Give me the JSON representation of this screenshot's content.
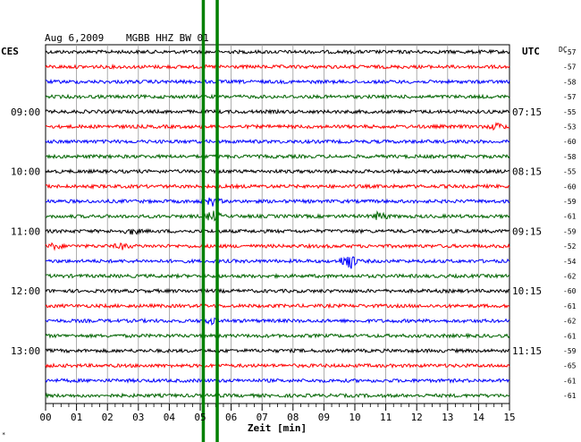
{
  "header": {
    "date": "Aug 6,2009",
    "station": "MGBB HHZ BW 01"
  },
  "left_corner_label": "CES",
  "right_corner_label": "UTC",
  "dc_header": "DC",
  "footer_mark": "*",
  "chart_data": {
    "type": "line",
    "title": "Aug 6,2009   MGBB HHZ BW 01",
    "xlabel": "Zeit [min]",
    "xlim": [
      0,
      15
    ],
    "x_ticks": [
      "00",
      "01",
      "02",
      "03",
      "04",
      "05",
      "06",
      "07",
      "08",
      "09",
      "10",
      "11",
      "12",
      "13",
      "14",
      "15"
    ],
    "grid": true,
    "left_time_labels": [
      {
        "trace": 4,
        "label": "09:00"
      },
      {
        "trace": 8,
        "label": "10:00"
      },
      {
        "trace": 12,
        "label": "11:00"
      },
      {
        "trace": 16,
        "label": "12:00"
      },
      {
        "trace": 20,
        "label": "13:00"
      }
    ],
    "right_time_labels": [
      {
        "trace": 4,
        "label": "07:15"
      },
      {
        "trace": 8,
        "label": "08:15"
      },
      {
        "trace": 12,
        "label": "09:15"
      },
      {
        "trace": 16,
        "label": "10:15"
      },
      {
        "trace": 20,
        "label": "11:15"
      }
    ],
    "dc_offsets": [
      "-57",
      "-57",
      "-58",
      "-57",
      "-55",
      "-53",
      "-60",
      "-58",
      "-55",
      "-60",
      "-59",
      "-61",
      "-59",
      "-52",
      "-54",
      "-62",
      "-60",
      "-61",
      "-62",
      "-61",
      "-59",
      "-65",
      "-61",
      "-61"
    ],
    "trace_colors": [
      "#000000",
      "#ff0000",
      "#0000ff",
      "#006400"
    ],
    "events": [
      {
        "trace": 5,
        "minute": 14.6,
        "amplitude": 0.6
      },
      {
        "trace": 10,
        "minute": 5.4,
        "amplitude": 0.8
      },
      {
        "trace": 11,
        "minute": 5.4,
        "amplitude": 1.0
      },
      {
        "trace": 11,
        "minute": 10.8,
        "amplitude": 0.8
      },
      {
        "trace": 12,
        "minute": 2.8,
        "amplitude": 0.5
      },
      {
        "trace": 13,
        "minute": 0.3,
        "amplitude": 0.5
      },
      {
        "trace": 13,
        "minute": 2.5,
        "amplitude": 0.5
      },
      {
        "trace": 14,
        "minute": 9.8,
        "amplitude": 1.8
      },
      {
        "trace": 18,
        "minute": 5.4,
        "amplitude": 0.5
      }
    ],
    "markers": [
      {
        "minute": 5.1,
        "color": "#008000"
      },
      {
        "minute": 5.55,
        "color": "#008000"
      }
    ]
  }
}
